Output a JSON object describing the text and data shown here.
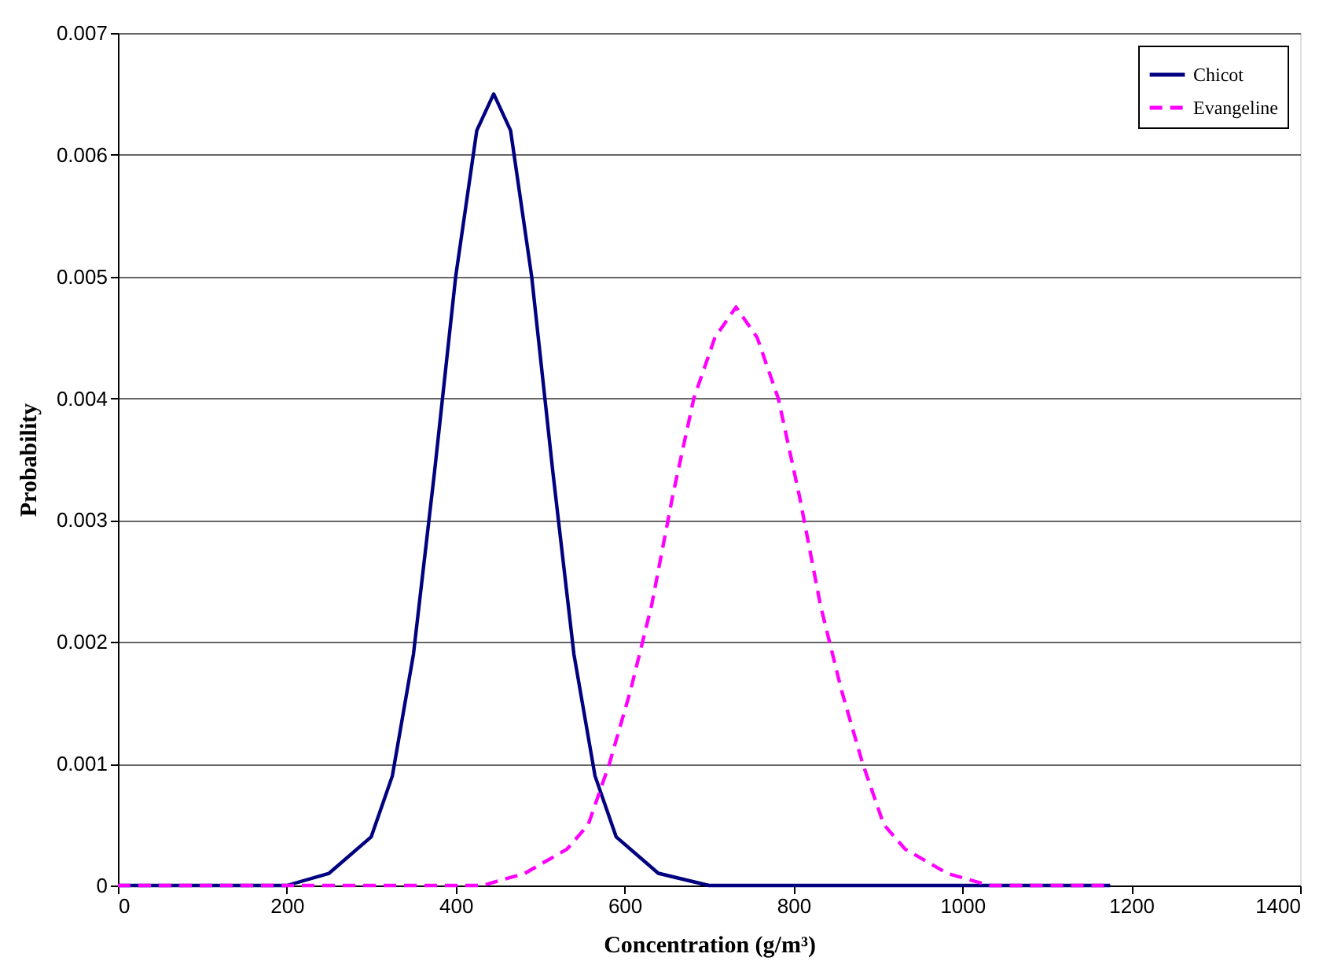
{
  "chart_data": {
    "type": "line",
    "xlabel": "Concentration (g/m³)",
    "ylabel": "Probability",
    "xlim": [
      0,
      1400
    ],
    "xticks": [
      0,
      200,
      400,
      600,
      800,
      1000,
      1200,
      1400
    ],
    "ylim": [
      0,
      0.007
    ],
    "yticks": [
      0,
      0.001,
      0.002,
      0.003,
      0.004,
      0.005,
      0.006,
      0.007
    ],
    "grid": "y",
    "legend": "top right",
    "marker": "none",
    "series": [
      {
        "name": "Chicot",
        "color": "#000080",
        "line_style": "solid",
        "x": [
          0,
          200,
          250,
          300,
          325,
          350,
          375,
          400,
          425,
          445,
          465,
          490,
          515,
          540,
          565,
          590,
          640,
          700,
          1175
        ],
        "values": [
          0,
          0,
          0.0001,
          0.0004,
          0.0009,
          0.0019,
          0.0034,
          0.005,
          0.0062,
          0.0065,
          0.0062,
          0.005,
          0.0034,
          0.0019,
          0.0009,
          0.0004,
          0.0001,
          0,
          0
        ]
      },
      {
        "name": "Evangeline",
        "color": "#ff00ff",
        "line_style": "dashed",
        "x": [
          0,
          432,
          482,
          532,
          557,
          582,
          607,
          632,
          657,
          682,
          707,
          732,
          757,
          782,
          807,
          832,
          857,
          882,
          907,
          932,
          982,
          1032,
          1175
        ],
        "values": [
          0,
          0,
          0.0001,
          0.0003,
          0.0005,
          0.001,
          0.0016,
          0.0023,
          0.0032,
          0.004,
          0.0045,
          0.00475,
          0.0045,
          0.004,
          0.0032,
          0.0023,
          0.0016,
          0.001,
          0.0005,
          0.0003,
          0.0001,
          0,
          0
        ]
      }
    ]
  }
}
